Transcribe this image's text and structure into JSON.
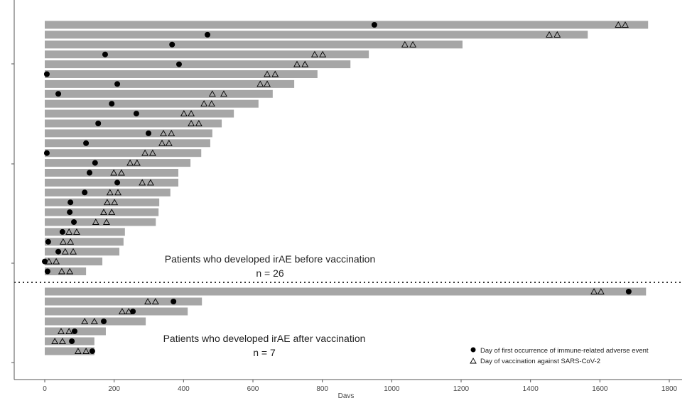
{
  "chart_data": {
    "type": "swimmer",
    "xlabel": "Days",
    "xlim": [
      0,
      1800
    ],
    "xticks": [
      0,
      200,
      400,
      600,
      800,
      1000,
      1200,
      1400,
      1600,
      1800
    ],
    "colors": {
      "bar": "#a6a6a6",
      "marker": "#000000",
      "separator": "#333333"
    },
    "legend": {
      "position": "bottom-right",
      "entries": [
        {
          "symbol": "filled-circle",
          "label": "Day of first occurrence of immune-related adverse event"
        },
        {
          "symbol": "open-triangle",
          "label": "Day of vaccination against SARS-CoV-2"
        }
      ]
    },
    "groups": [
      {
        "title": "Patients who developed irAE before vaccination",
        "n_label": "n = 26",
        "patients": [
          {
            "end": 1739,
            "irae": 950,
            "vacc": [
              1653,
              1673
            ]
          },
          {
            "end": 1565,
            "irae": 469,
            "vacc": [
              1454,
              1477
            ]
          },
          {
            "end": 1204,
            "irae": 367,
            "vacc": [
              1038,
              1061
            ]
          },
          {
            "end": 934,
            "irae": 174,
            "vacc": [
              778,
              801
            ]
          },
          {
            "end": 881,
            "irae": 387,
            "vacc": [
              727,
              750
            ]
          },
          {
            "end": 786,
            "irae": 6,
            "vacc": [
              641,
              664
            ]
          },
          {
            "end": 719,
            "irae": 209,
            "vacc": [
              621,
              641
            ]
          },
          {
            "end": 657,
            "irae": 39,
            "vacc": [
              483,
              516
            ]
          },
          {
            "end": 616,
            "irae": 193,
            "vacc": [
              459,
              481
            ]
          },
          {
            "end": 545,
            "irae": 264,
            "vacc": [
              401,
              422
            ]
          },
          {
            "end": 510,
            "irae": 154,
            "vacc": [
              422,
              444
            ]
          },
          {
            "end": 483,
            "irae": 299,
            "vacc": [
              342,
              365
            ]
          },
          {
            "end": 477,
            "irae": 119,
            "vacc": [
              338,
              358
            ]
          },
          {
            "end": 451,
            "irae": 6,
            "vacc": [
              289,
              311
            ]
          },
          {
            "end": 420,
            "irae": 145,
            "vacc": [
              246,
              266
            ]
          },
          {
            "end": 385,
            "irae": 129,
            "vacc": [
              199,
              221
            ]
          },
          {
            "end": 385,
            "irae": 209,
            "vacc": [
              281,
              305
            ]
          },
          {
            "end": 362,
            "irae": 115,
            "vacc": [
              188,
              211
            ]
          },
          {
            "end": 330,
            "irae": 74,
            "vacc": [
              180,
              201
            ]
          },
          {
            "end": 328,
            "irae": 72,
            "vacc": [
              170,
              193
            ]
          },
          {
            "end": 320,
            "irae": 84,
            "vacc": [
              147,
              178
            ]
          },
          {
            "end": 231,
            "irae": 51,
            "vacc": [
              70,
              92
            ]
          },
          {
            "end": 227,
            "irae": 10,
            "vacc": [
              53,
              74
            ]
          },
          {
            "end": 215,
            "irae": 39,
            "vacc": [
              59,
              82
            ]
          },
          {
            "end": 166,
            "irae": 0,
            "vacc": [
              12,
              33
            ]
          },
          {
            "end": 119,
            "irae": 8,
            "vacc": [
              49,
              72
            ]
          }
        ]
      },
      {
        "title": "Patients who developed irAE after vaccination",
        "n_label": "n = 7",
        "patients": [
          {
            "end": 1733,
            "irae": 1683,
            "vacc": [
              1583,
              1603
            ]
          },
          {
            "end": 453,
            "irae": 371,
            "vacc": [
              297,
              319
            ]
          },
          {
            "end": 412,
            "irae": 254,
            "vacc": [
              223,
              242
            ]
          },
          {
            "end": 291,
            "irae": 170,
            "vacc": [
              115,
              143
            ]
          },
          {
            "end": 176,
            "irae": 86,
            "vacc": [
              47,
              70
            ]
          },
          {
            "end": 143,
            "irae": 78,
            "vacc": [
              29,
              51
            ]
          },
          {
            "end": 143,
            "irae": 137,
            "vacc": [
              96,
              119
            ]
          }
        ]
      }
    ]
  }
}
